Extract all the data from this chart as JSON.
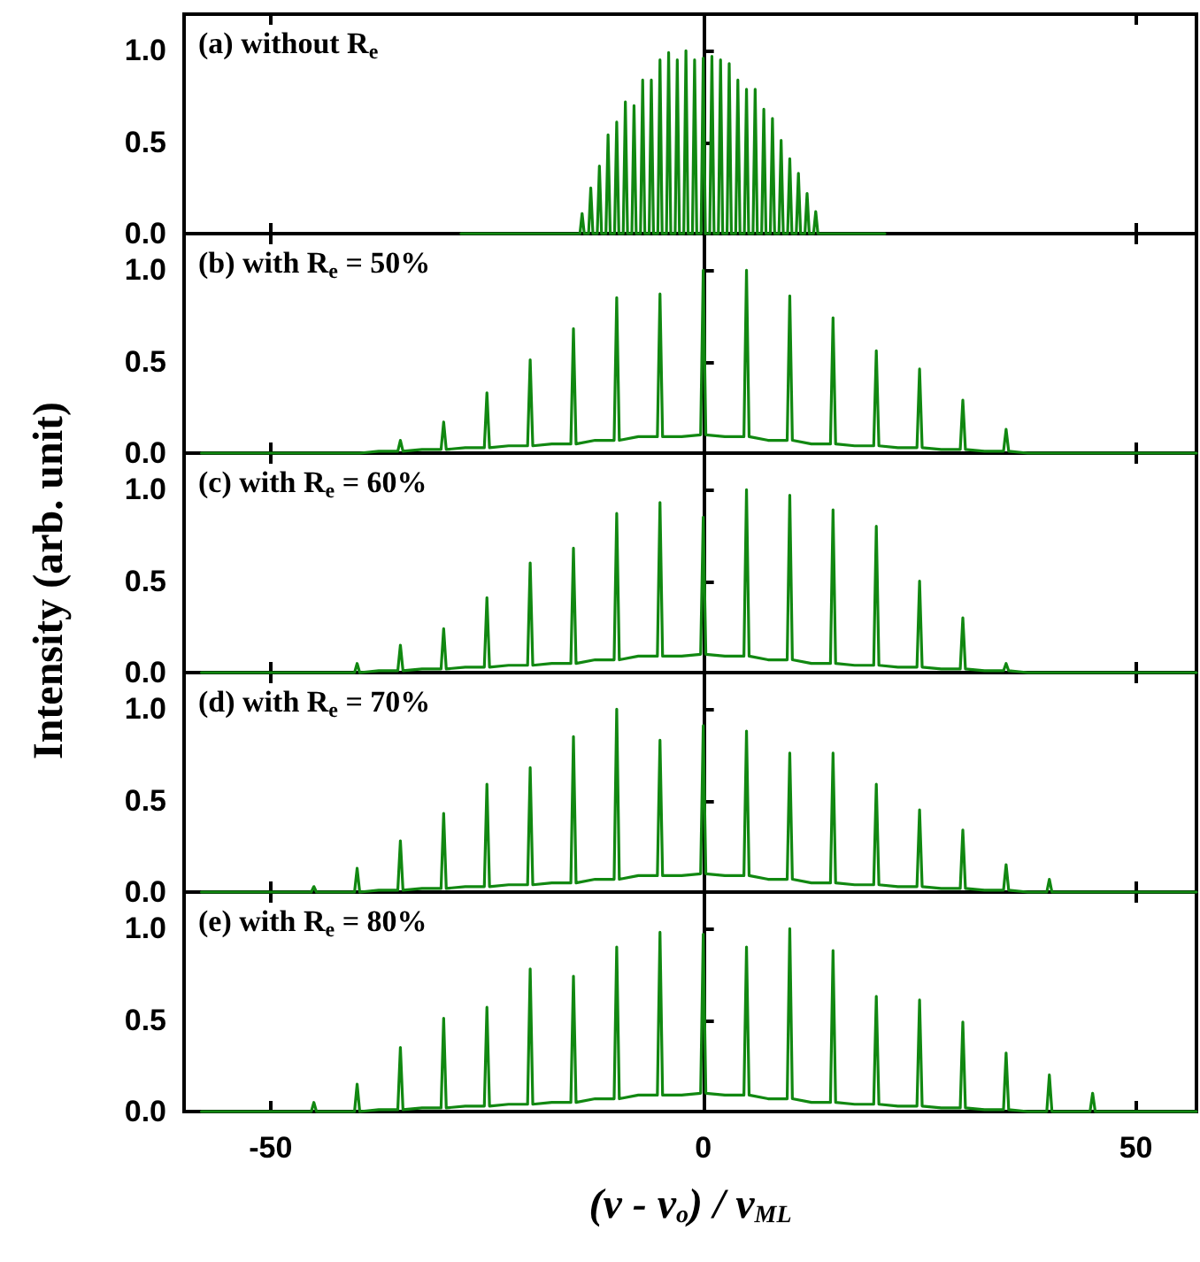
{
  "chart_data": [
    {
      "type": "line",
      "annotations": [
        "(a) without R$_{e}$"
      ],
      "marker": "none",
      "tick_labels": "y",
      "xlim": [
        -60,
        57
      ],
      "xticks": [
        -50,
        0,
        50
      ],
      "ylim": [
        0,
        1.2
      ],
      "yticks": [
        {
          "value": 0,
          "label": "0.0"
        },
        {
          "value": 0.5,
          "label": "0.5"
        },
        {
          "value": 1,
          "label": "1.0"
        }
      ],
      "x": [
        -28,
        -14.25,
        -14,
        -13.75,
        -13.25,
        -13,
        -12.75,
        -12.25,
        -12,
        -11.75,
        -11.25,
        -11,
        -10.75,
        -10.25,
        -10,
        -9.75,
        -9.25,
        -9,
        -8.75,
        -8.25,
        -8,
        -7.75,
        -7.25,
        -7,
        -6.75,
        -6.25,
        -6,
        -5.75,
        -5.25,
        -5,
        -4.75,
        -4.25,
        -4,
        -3.75,
        -3.25,
        -3,
        -2.75,
        -2.25,
        -2,
        -1.75,
        -1.25,
        -1,
        -0.75,
        -0.25,
        0,
        0.25,
        0.75,
        1,
        1.25,
        1.75,
        2,
        2.25,
        2.75,
        3,
        3.25,
        3.75,
        4,
        4.25,
        4.75,
        5,
        5.25,
        5.75,
        6,
        6.25,
        6.75,
        7,
        7.25,
        7.75,
        8,
        8.25,
        8.75,
        9,
        9.25,
        9.75,
        10,
        10.25,
        10.75,
        11,
        11.25,
        11.75,
        12,
        12.25,
        12.75,
        13,
        13.25,
        21
      ],
      "series": [
        {
          "color": "#118811",
          "values": [
            0,
            0,
            0.11,
            0,
            0,
            0.25,
            0,
            0,
            0.37,
            0,
            0,
            0.54,
            0,
            0,
            0.61,
            0,
            0,
            0.72,
            0,
            0,
            0.7,
            0,
            0,
            0.84,
            0,
            0,
            0.84,
            0,
            0,
            0.95,
            0,
            0,
            0.99,
            0,
            0,
            0.95,
            0,
            0,
            1.0,
            0,
            0,
            0.95,
            0,
            0,
            0.96,
            0,
            0,
            0.97,
            0,
            0,
            0.95,
            0,
            0,
            0.93,
            0,
            0,
            0.84,
            0,
            0,
            0.79,
            0,
            0,
            0.79,
            0,
            0,
            0.68,
            0,
            0,
            0.63,
            0,
            0,
            0.51,
            0,
            0,
            0.41,
            0,
            0,
            0.33,
            0,
            0,
            0.22,
            0,
            0,
            0.12,
            0,
            0
          ]
        }
      ]
    },
    {
      "type": "line",
      "annotations": [
        "(b) with R$_{e}$ = 50%"
      ],
      "marker": "none",
      "tick_labels": "y",
      "xlim": [
        -60,
        57
      ],
      "xticks": [
        -50,
        0,
        50
      ],
      "ylim": [
        0,
        1.2
      ],
      "yticks": [
        {
          "value": 0,
          "label": "0.0"
        },
        {
          "value": 0.5,
          "label": "0.5"
        },
        {
          "value": 1,
          "label": "1.0"
        }
      ],
      "x": [
        -58,
        -45.3,
        -45,
        -44.7,
        -42.5,
        -40.3,
        -40,
        -39.7,
        -37.5,
        -35.3,
        -35,
        -34.7,
        -32.5,
        -30.3,
        -30,
        -29.7,
        -27.5,
        -25.3,
        -25,
        -24.7,
        -22.5,
        -20.3,
        -20,
        -19.7,
        -17.5,
        -15.3,
        -15,
        -14.7,
        -12.5,
        -10.3,
        -10,
        -9.7,
        -7.5,
        -5.3,
        -5,
        -4.7,
        -2.5,
        -0.3,
        0,
        0.3,
        2.5,
        4.7,
        5,
        5.3,
        7.5,
        9.7,
        10,
        10.3,
        12.5,
        14.7,
        15,
        15.3,
        17.5,
        19.7,
        20,
        20.3,
        22.5,
        24.7,
        25,
        25.3,
        27.5,
        29.7,
        30,
        30.3,
        32.5,
        34.7,
        35,
        35.3,
        37.5,
        39.7,
        40,
        40.3,
        42.5,
        44.7,
        45,
        45.3,
        57
      ],
      "series": [
        {
          "color": "#118811",
          "values": [
            0,
            0,
            0,
            0,
            0,
            0,
            0,
            0,
            0.01,
            0.01,
            0.07,
            0.01,
            0.02,
            0.02,
            0.17,
            0.02,
            0.03,
            0.03,
            0.33,
            0.03,
            0.04,
            0.04,
            0.51,
            0.04,
            0.05,
            0.05,
            0.68,
            0.05,
            0.07,
            0.07,
            0.85,
            0.07,
            0.09,
            0.09,
            0.87,
            0.09,
            0.09,
            0.1,
            1.0,
            0.1,
            0.09,
            0.09,
            1.0,
            0.09,
            0.07,
            0.07,
            0.86,
            0.07,
            0.05,
            0.05,
            0.74,
            0.05,
            0.04,
            0.04,
            0.56,
            0.04,
            0.03,
            0.03,
            0.46,
            0.03,
            0.02,
            0.02,
            0.29,
            0.02,
            0.01,
            0.01,
            0.13,
            0.01,
            0,
            0,
            0,
            0,
            0,
            0,
            0,
            0,
            0
          ]
        }
      ]
    },
    {
      "type": "line",
      "annotations": [
        "(c) with R$_{e}$ = 60%"
      ],
      "ylabel": "Intensity (arb. unit)",
      "marker": "none",
      "tick_labels": "y",
      "xlim": [
        -60,
        57
      ],
      "xticks": [
        -50,
        0,
        50
      ],
      "ylim": [
        0,
        1.2
      ],
      "yticks": [
        {
          "value": 0,
          "label": "0.0"
        },
        {
          "value": 0.5,
          "label": "0.5"
        },
        {
          "value": 1,
          "label": "1.0"
        }
      ],
      "x": [
        -58,
        -45.3,
        -45,
        -44.7,
        -42.5,
        -40.3,
        -40,
        -39.7,
        -37.5,
        -35.3,
        -35,
        -34.7,
        -32.5,
        -30.3,
        -30,
        -29.7,
        -27.5,
        -25.3,
        -25,
        -24.7,
        -22.5,
        -20.3,
        -20,
        -19.7,
        -17.5,
        -15.3,
        -15,
        -14.7,
        -12.5,
        -10.3,
        -10,
        -9.7,
        -7.5,
        -5.3,
        -5,
        -4.7,
        -2.5,
        -0.3,
        0,
        0.3,
        2.5,
        4.7,
        5,
        5.3,
        7.5,
        9.7,
        10,
        10.3,
        12.5,
        14.7,
        15,
        15.3,
        17.5,
        19.7,
        20,
        20.3,
        22.5,
        24.7,
        25,
        25.3,
        27.5,
        29.7,
        30,
        30.3,
        32.5,
        34.7,
        35,
        35.3,
        37.5,
        39.7,
        40,
        40.3,
        42.5,
        44.7,
        45,
        45.3,
        57
      ],
      "series": [
        {
          "color": "#118811",
          "values": [
            0,
            0,
            0,
            0,
            0,
            0,
            0.05,
            0,
            0.01,
            0.01,
            0.15,
            0.01,
            0.02,
            0.02,
            0.24,
            0.02,
            0.03,
            0.03,
            0.41,
            0.03,
            0.04,
            0.04,
            0.6,
            0.04,
            0.05,
            0.05,
            0.68,
            0.05,
            0.07,
            0.07,
            0.87,
            0.07,
            0.09,
            0.09,
            0.93,
            0.09,
            0.09,
            0.1,
            0.85,
            0.1,
            0.09,
            0.09,
            1.0,
            0.09,
            0.07,
            0.07,
            0.97,
            0.07,
            0.05,
            0.05,
            0.89,
            0.05,
            0.04,
            0.04,
            0.8,
            0.04,
            0.03,
            0.03,
            0.5,
            0.03,
            0.02,
            0.02,
            0.3,
            0.02,
            0.01,
            0.01,
            0.05,
            0.01,
            0,
            0,
            0,
            0,
            0,
            0,
            0,
            0,
            0
          ]
        }
      ]
    },
    {
      "type": "line",
      "annotations": [
        "(d) with R$_{e}$ = 70%"
      ],
      "marker": "none",
      "tick_labels": "y",
      "xlim": [
        -60,
        57
      ],
      "xticks": [
        -50,
        0,
        50
      ],
      "ylim": [
        0,
        1.2
      ],
      "yticks": [
        {
          "value": 0,
          "label": "0.0"
        },
        {
          "value": 0.5,
          "label": "0.5"
        },
        {
          "value": 1,
          "label": "1.0"
        }
      ],
      "x": [
        -58,
        -45.3,
        -45,
        -44.7,
        -42.5,
        -40.3,
        -40,
        -39.7,
        -37.5,
        -35.3,
        -35,
        -34.7,
        -32.5,
        -30.3,
        -30,
        -29.7,
        -27.5,
        -25.3,
        -25,
        -24.7,
        -22.5,
        -20.3,
        -20,
        -19.7,
        -17.5,
        -15.3,
        -15,
        -14.7,
        -12.5,
        -10.3,
        -10,
        -9.7,
        -7.5,
        -5.3,
        -5,
        -4.7,
        -2.5,
        -0.3,
        0,
        0.3,
        2.5,
        4.7,
        5,
        5.3,
        7.5,
        9.7,
        10,
        10.3,
        12.5,
        14.7,
        15,
        15.3,
        17.5,
        19.7,
        20,
        20.3,
        22.5,
        24.7,
        25,
        25.3,
        27.5,
        29.7,
        30,
        30.3,
        32.5,
        34.7,
        35,
        35.3,
        37.5,
        39.7,
        40,
        40.3,
        42.5,
        44.7,
        45,
        45.3,
        57
      ],
      "series": [
        {
          "color": "#118811",
          "values": [
            0,
            0,
            0.03,
            0,
            0,
            0,
            0.13,
            0,
            0.01,
            0.01,
            0.28,
            0.01,
            0.02,
            0.02,
            0.43,
            0.02,
            0.03,
            0.03,
            0.59,
            0.03,
            0.04,
            0.04,
            0.68,
            0.04,
            0.05,
            0.05,
            0.85,
            0.05,
            0.07,
            0.07,
            1.0,
            0.07,
            0.09,
            0.09,
            0.83,
            0.09,
            0.09,
            0.1,
            0.91,
            0.1,
            0.09,
            0.09,
            0.88,
            0.09,
            0.07,
            0.07,
            0.76,
            0.07,
            0.05,
            0.05,
            0.76,
            0.05,
            0.04,
            0.04,
            0.59,
            0.04,
            0.03,
            0.03,
            0.45,
            0.03,
            0.02,
            0.02,
            0.34,
            0.02,
            0.01,
            0.01,
            0.15,
            0.01,
            0,
            0,
            0.07,
            0,
            0,
            0,
            0,
            0,
            0
          ]
        }
      ]
    },
    {
      "type": "line",
      "annotations": [
        "(e) with R$_{e}$ = 80%"
      ],
      "xlabel": "(ν - ν$_{o}$) / ν$_{ML}$",
      "marker": "none",
      "xlim": [
        -60,
        57
      ],
      "xticks": [
        -50,
        0,
        50
      ],
      "ylim": [
        0,
        1.2
      ],
      "yticks": [
        {
          "value": 0,
          "label": "0.0"
        },
        {
          "value": 0.5,
          "label": "0.5"
        },
        {
          "value": 1,
          "label": "1.0"
        }
      ],
      "x": [
        -58,
        -45.3,
        -45,
        -44.7,
        -42.5,
        -40.3,
        -40,
        -39.7,
        -37.5,
        -35.3,
        -35,
        -34.7,
        -32.5,
        -30.3,
        -30,
        -29.7,
        -27.5,
        -25.3,
        -25,
        -24.7,
        -22.5,
        -20.3,
        -20,
        -19.7,
        -17.5,
        -15.3,
        -15,
        -14.7,
        -12.5,
        -10.3,
        -10,
        -9.7,
        -7.5,
        -5.3,
        -5,
        -4.7,
        -2.5,
        -0.3,
        0,
        0.3,
        2.5,
        4.7,
        5,
        5.3,
        7.5,
        9.7,
        10,
        10.3,
        12.5,
        14.7,
        15,
        15.3,
        17.5,
        19.7,
        20,
        20.3,
        22.5,
        24.7,
        25,
        25.3,
        27.5,
        29.7,
        30,
        30.3,
        32.5,
        34.7,
        35,
        35.3,
        37.5,
        39.7,
        40,
        40.3,
        42.5,
        44.7,
        45,
        45.3,
        57
      ],
      "series": [
        {
          "color": "#118811",
          "values": [
            0,
            0,
            0.05,
            0,
            0,
            0,
            0.15,
            0,
            0.01,
            0.01,
            0.35,
            0.01,
            0.02,
            0.02,
            0.51,
            0.02,
            0.03,
            0.03,
            0.57,
            0.03,
            0.04,
            0.04,
            0.78,
            0.04,
            0.05,
            0.05,
            0.74,
            0.05,
            0.07,
            0.07,
            0.9,
            0.07,
            0.09,
            0.09,
            0.98,
            0.09,
            0.09,
            0.1,
            0.97,
            0.1,
            0.09,
            0.09,
            0.9,
            0.09,
            0.07,
            0.07,
            1.0,
            0.07,
            0.05,
            0.05,
            0.88,
            0.05,
            0.04,
            0.04,
            0.63,
            0.04,
            0.03,
            0.03,
            0.61,
            0.03,
            0.02,
            0.02,
            0.49,
            0.02,
            0.01,
            0.01,
            0.32,
            0.01,
            0,
            0,
            0.2,
            0,
            0,
            0,
            0.1,
            0,
            0
          ]
        }
      ]
    }
  ]
}
